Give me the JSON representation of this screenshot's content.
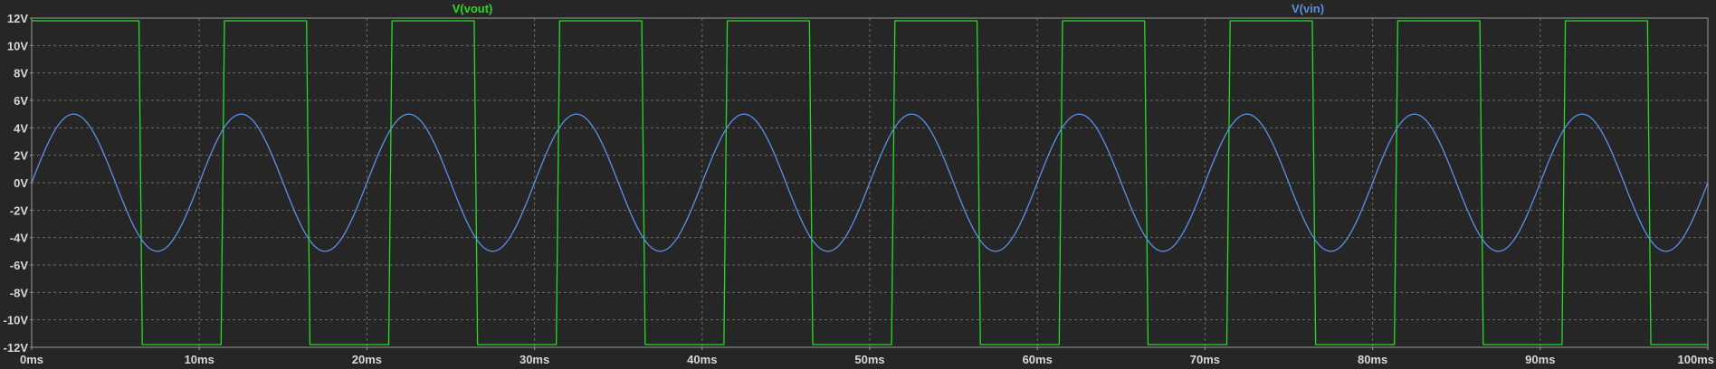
{
  "chart_data": {
    "type": "line",
    "title": "",
    "xlabel": "",
    "ylabel": "",
    "xlim": [
      0,
      100
    ],
    "ylim": [
      -12,
      12
    ],
    "x_unit": "ms",
    "y_unit": "V",
    "grid": true,
    "x_ticks": [
      {
        "value": 0,
        "label": "0ms"
      },
      {
        "value": 10,
        "label": "10ms"
      },
      {
        "value": 20,
        "label": "20ms"
      },
      {
        "value": 30,
        "label": "30ms"
      },
      {
        "value": 40,
        "label": "40ms"
      },
      {
        "value": 50,
        "label": "50ms"
      },
      {
        "value": 60,
        "label": "60ms"
      },
      {
        "value": 70,
        "label": "70ms"
      },
      {
        "value": 80,
        "label": "80ms"
      },
      {
        "value": 90,
        "label": "90ms"
      },
      {
        "value": 100,
        "label": "100ms"
      }
    ],
    "y_ticks": [
      {
        "value": 12,
        "label": "12V"
      },
      {
        "value": 10,
        "label": "10V"
      },
      {
        "value": 8,
        "label": "8V"
      },
      {
        "value": 6,
        "label": "6V"
      },
      {
        "value": 4,
        "label": "4V"
      },
      {
        "value": 2,
        "label": "2V"
      },
      {
        "value": 0,
        "label": "0V"
      },
      {
        "value": -2,
        "label": "-2V"
      },
      {
        "value": -4,
        "label": "-4V"
      },
      {
        "value": -6,
        "label": "-6V"
      },
      {
        "value": -8,
        "label": "-8V"
      },
      {
        "value": -10,
        "label": "-10V"
      },
      {
        "value": -12,
        "label": "-12V"
      }
    ],
    "series": [
      {
        "name": "V(vout)",
        "color": "#22dd22",
        "shape": "square",
        "high": 11.8,
        "low": -11.8,
        "transitions": [
          {
            "x": 0.0,
            "y": 11.8
          },
          {
            "x": 6.4,
            "y": 11.8
          },
          {
            "x": 6.6,
            "y": -11.8
          },
          {
            "x": 11.3,
            "y": -11.8
          },
          {
            "x": 11.5,
            "y": 11.8
          },
          {
            "x": 16.4,
            "y": 11.8
          },
          {
            "x": 16.6,
            "y": -11.8
          },
          {
            "x": 21.3,
            "y": -11.8
          },
          {
            "x": 21.5,
            "y": 11.8
          },
          {
            "x": 26.4,
            "y": 11.8
          },
          {
            "x": 26.6,
            "y": -11.8
          },
          {
            "x": 31.3,
            "y": -11.8
          },
          {
            "x": 31.5,
            "y": 11.8
          },
          {
            "x": 36.4,
            "y": 11.8
          },
          {
            "x": 36.6,
            "y": -11.8
          },
          {
            "x": 41.3,
            "y": -11.8
          },
          {
            "x": 41.5,
            "y": 11.8
          },
          {
            "x": 46.4,
            "y": 11.8
          },
          {
            "x": 46.6,
            "y": -11.8
          },
          {
            "x": 51.3,
            "y": -11.8
          },
          {
            "x": 51.5,
            "y": 11.8
          },
          {
            "x": 56.4,
            "y": 11.8
          },
          {
            "x": 56.6,
            "y": -11.8
          },
          {
            "x": 61.3,
            "y": -11.8
          },
          {
            "x": 61.5,
            "y": 11.8
          },
          {
            "x": 66.4,
            "y": 11.8
          },
          {
            "x": 66.6,
            "y": -11.8
          },
          {
            "x": 71.3,
            "y": -11.8
          },
          {
            "x": 71.5,
            "y": 11.8
          },
          {
            "x": 76.4,
            "y": 11.8
          },
          {
            "x": 76.6,
            "y": -11.8
          },
          {
            "x": 81.3,
            "y": -11.8
          },
          {
            "x": 81.5,
            "y": 11.8
          },
          {
            "x": 86.4,
            "y": 11.8
          },
          {
            "x": 86.6,
            "y": -11.8
          },
          {
            "x": 91.3,
            "y": -11.8
          },
          {
            "x": 91.5,
            "y": 11.8
          },
          {
            "x": 96.4,
            "y": 11.8
          },
          {
            "x": 96.6,
            "y": -11.8
          },
          {
            "x": 100.0,
            "y": -11.8
          }
        ]
      },
      {
        "name": "V(vin)",
        "color": "#5b8fe8",
        "shape": "sine",
        "amplitude": 5,
        "offset": 0,
        "period": 10,
        "phase": 0
      }
    ],
    "legend": [
      {
        "label": "V(vout)",
        "color": "#22dd22",
        "placement": "top-center-left"
      },
      {
        "label": "V(vin)",
        "color": "#5b8fe8",
        "placement": "top-right"
      }
    ]
  }
}
